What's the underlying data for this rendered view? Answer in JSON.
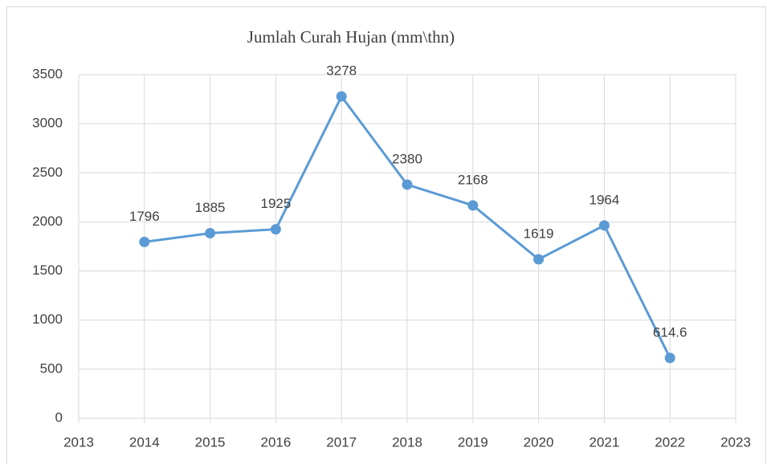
{
  "chart_data": {
    "type": "line",
    "title": "Jumlah Curah Hujan (mm\\thn)",
    "x": [
      2014,
      2015,
      2016,
      2017,
      2018,
      2019,
      2020,
      2021,
      2022
    ],
    "values": [
      1796,
      1885,
      1925,
      3278,
      2380,
      2168,
      1619,
      1964,
      614.6
    ],
    "color": "#5b9bd5",
    "xlim": [
      2013,
      2023
    ],
    "xticks": [
      2013,
      2014,
      2015,
      2016,
      2017,
      2018,
      2019,
      2020,
      2021,
      2022,
      2023
    ],
    "ylim": [
      0,
      3500
    ],
    "yticks": [
      0,
      500,
      1000,
      1500,
      2000,
      2500,
      3000,
      3500
    ],
    "grid": true
  }
}
